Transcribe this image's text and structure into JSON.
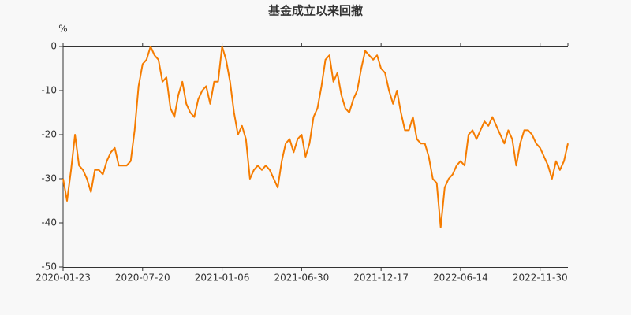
{
  "chart_data": {
    "type": "line",
    "title": "基金成立以来回撤",
    "y_label": "%",
    "categories": [
      "2020-01-23",
      null,
      null,
      null,
      null,
      null,
      null,
      null,
      null,
      null,
      null,
      null,
      null,
      null,
      null,
      null,
      null,
      null,
      null,
      null,
      "2020-07-20",
      null,
      null,
      null,
      null,
      null,
      null,
      null,
      null,
      null,
      null,
      null,
      null,
      null,
      null,
      null,
      null,
      null,
      null,
      null,
      "2021-01-06",
      null,
      null,
      null,
      null,
      null,
      null,
      null,
      null,
      null,
      null,
      null,
      null,
      null,
      null,
      null,
      null,
      null,
      null,
      null,
      "2021-06-30",
      null,
      null,
      null,
      null,
      null,
      null,
      null,
      null,
      null,
      null,
      null,
      null,
      null,
      null,
      null,
      null,
      null,
      null,
      null,
      "2021-12-17",
      null,
      null,
      null,
      null,
      null,
      null,
      null,
      null,
      null,
      null,
      null,
      null,
      null,
      null,
      null,
      null,
      null,
      null,
      null,
      "2022-06-14",
      null,
      null,
      null,
      null,
      null,
      null,
      null,
      null,
      null,
      null,
      null,
      null,
      null,
      null,
      null,
      null,
      null,
      null,
      null,
      "2022-11-30",
      null,
      null,
      null,
      null,
      null,
      null,
      null
    ],
    "series": [
      {
        "color": "#f57c00",
        "values": [
          -30,
          -35,
          -28,
          -20,
          -27,
          -28,
          -30,
          -33,
          -28,
          -28,
          -29,
          -26,
          -24,
          -23,
          -27,
          -27,
          -27,
          -26,
          -19,
          -9,
          -4,
          -3,
          0,
          -2,
          -3,
          -8,
          -7,
          -14,
          -16,
          -11,
          -8,
          -13,
          -15,
          -16,
          -12,
          -10,
          -9,
          -13,
          -8,
          -8,
          0,
          -3,
          -8,
          -15,
          -20,
          -18,
          -21,
          -30,
          -28,
          -27,
          -28,
          -27,
          -28,
          -30,
          -32,
          -26,
          -22,
          -21,
          -24,
          -21,
          -20,
          -25,
          -22,
          -16,
          -14,
          -9,
          -3,
          -2,
          -8,
          -6,
          -11,
          -14,
          -15,
          -12,
          -10,
          -5,
          -1,
          -2,
          -3,
          -2,
          -5,
          -6,
          -10,
          -13,
          -10,
          -15,
          -19,
          -19,
          -16,
          -21,
          -22,
          -22,
          -25,
          -30,
          -31,
          -41,
          -32,
          -30,
          -29,
          -27,
          -26,
          -27,
          -20,
          -19,
          -21,
          -19,
          -17,
          -18,
          -16,
          -18,
          -20,
          -22,
          -19,
          -21,
          -27,
          -22,
          -19,
          -19,
          -20,
          -22,
          -23,
          -25,
          -27,
          -30,
          -26,
          -28,
          -26,
          -22
        ]
      }
    ],
    "ylim": [
      -50,
      0
    ],
    "yticks": [
      0,
      -10,
      -20,
      -30,
      -40,
      -50
    ]
  }
}
